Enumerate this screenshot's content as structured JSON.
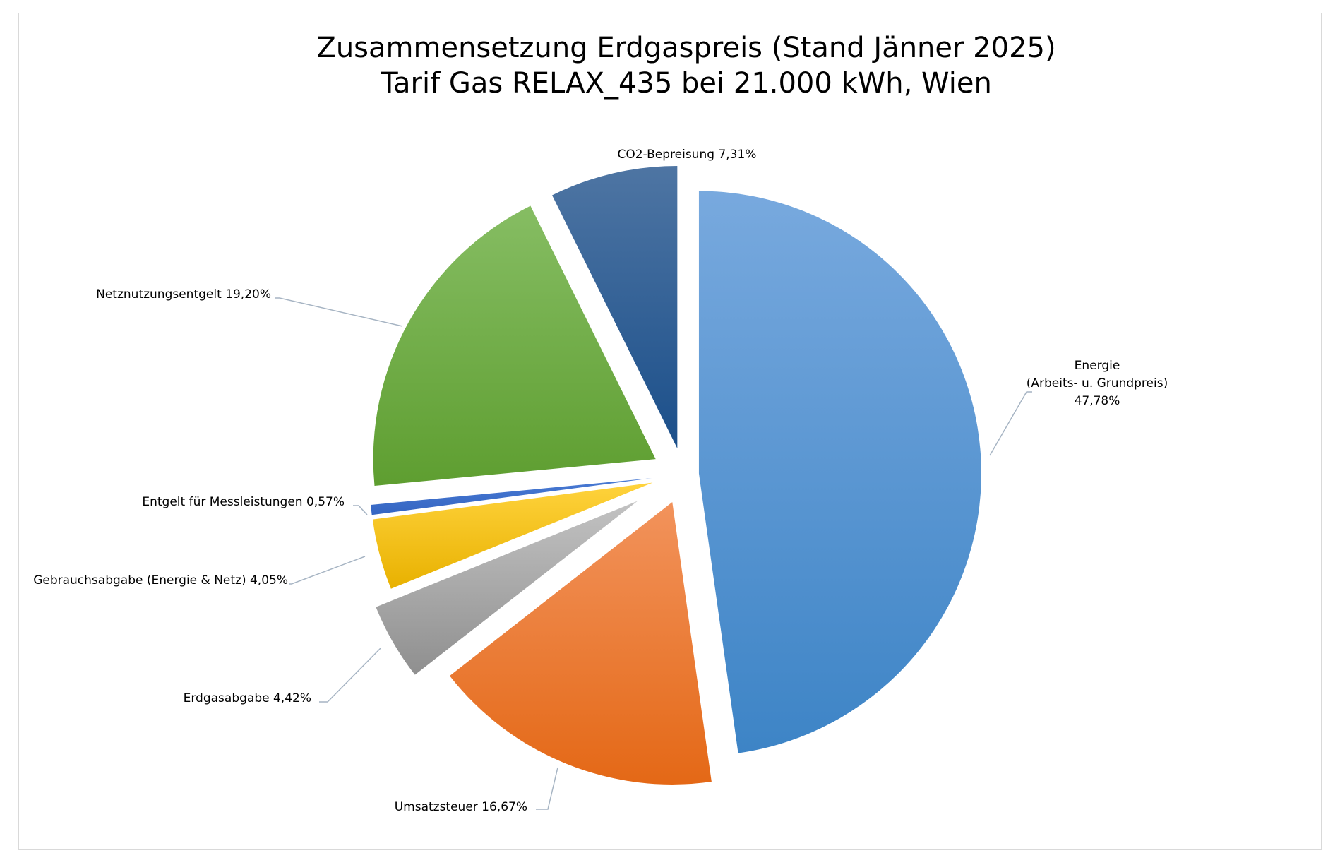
{
  "chart_data": {
    "type": "pie",
    "title": [
      "Zusammensetzung Erdgaspreis (Stand Jänner 2025)",
      "Tarif Gas RELAX_435 bei 21.000 kWh, Wien"
    ],
    "slices": [
      {
        "name": "Energie (Arbeits- u. Grundpreis)",
        "label_lines": [
          "Energie",
          "(Arbeits- u. Grundpreis)",
          "47,78%"
        ],
        "value": 47.78,
        "color_top": "#78a9de",
        "color_bottom": "#3d84c6"
      },
      {
        "name": "Umsatzsteuer",
        "label_lines": [
          "Umsatzsteuer 16,67%"
        ],
        "value": 16.67,
        "color_top": "#f2935c",
        "color_bottom": "#e46816"
      },
      {
        "name": "Erdgasabgabe",
        "label_lines": [
          "Erdgasabgabe 4,42%"
        ],
        "value": 4.42,
        "color_top": "#c2c2c2",
        "color_bottom": "#8f8f8f"
      },
      {
        "name": "Gebrauchsabgabe (Energie & Netz)",
        "label_lines": [
          "Gebrauchsabgabe (Energie & Netz) 4,05%"
        ],
        "value": 4.05,
        "color_top": "#ffd33d",
        "color_bottom": "#e8b100"
      },
      {
        "name": "Entgelt für Messleistungen",
        "label_lines": [
          "Entgelt für Messleistungen  0,57%"
        ],
        "value": 0.57,
        "color_top": "#4a7bd4",
        "color_bottom": "#3465c2"
      },
      {
        "name": "Netznutzungsentgelt",
        "label_lines": [
          "Netznutzungsentgelt 19,20%"
        ],
        "value": 19.2,
        "color_top": "#86bd63",
        "color_bottom": "#5e9e30"
      },
      {
        "name": "CO2-Bepreisung",
        "label_lines": [
          "CO2-Bepreisung  7,31%"
        ],
        "value": 7.31,
        "color_top": "#4e75a3",
        "color_bottom": "#1b4f8a"
      }
    ],
    "start_angle": "12 o'clock",
    "direction": "clockwise",
    "exploded": true,
    "legend": "none"
  }
}
